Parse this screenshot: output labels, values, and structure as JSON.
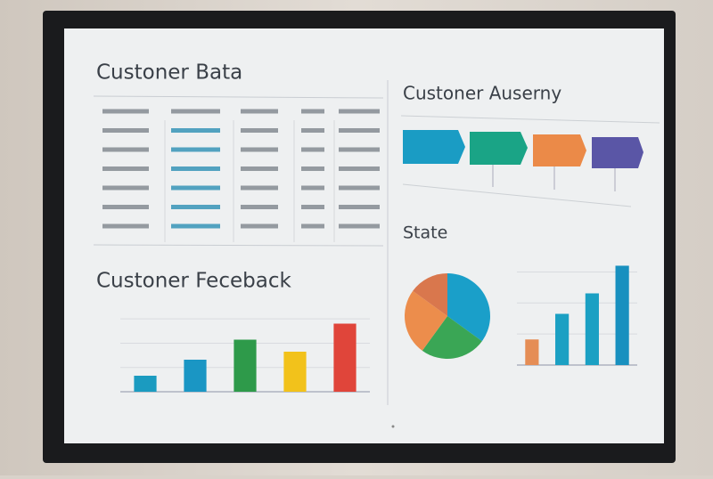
{
  "table": {
    "title": "Custoner Bata"
  },
  "flow": {
    "title": "Custoner Auserny"
  },
  "chart_data": [
    {
      "type": "bar",
      "title": "Custoner Feceback",
      "ylim": [
        0,
        10
      ],
      "values": [
        2,
        4,
        6.5,
        5,
        8.5
      ],
      "colors": [
        "#1b9bc0",
        "#1a96c4",
        "#2e9a4a",
        "#f2c21b",
        "#e0453a"
      ]
    },
    {
      "type": "pie",
      "title": "State",
      "values": [
        35,
        25,
        25,
        15
      ],
      "colors": [
        "#1a9fc9",
        "#3aa655",
        "#ec8d4c",
        "#d9774d"
      ]
    },
    {
      "type": "bar",
      "ylim": [
        0,
        10
      ],
      "values": [
        2.5,
        5,
        7,
        9.7
      ],
      "colors": [
        "#e58d55",
        "#1ba0c3",
        "#1ba0c3",
        "#1890bf"
      ]
    }
  ]
}
